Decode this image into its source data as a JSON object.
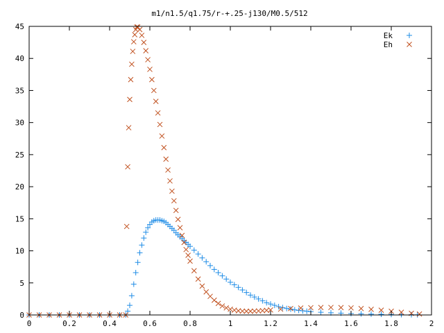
{
  "chart_data": {
    "type": "scatter",
    "title": "m1/n1.5/q1.75/r-+.25-j130/M0.5/512",
    "xlabel": "",
    "ylabel": "",
    "xlim": [
      0,
      2
    ],
    "ylim": [
      0,
      45
    ],
    "x_ticks": [
      0,
      0.2,
      0.4,
      0.6,
      0.8,
      1,
      1.2,
      1.4,
      1.6,
      1.8,
      2
    ],
    "x_tick_labels": [
      "0",
      "0.2",
      "0.4",
      "0.6",
      "0.8",
      "1",
      "1.2",
      "1.4",
      "1.6",
      "1.8",
      "2"
    ],
    "y_ticks": [
      0,
      5,
      10,
      15,
      20,
      25,
      30,
      35,
      40,
      45
    ],
    "y_tick_labels": [
      "0",
      "5",
      "10",
      "15",
      "20",
      "25",
      "30",
      "35",
      "40",
      "45"
    ],
    "grid": false,
    "legend_position": "top-right",
    "series": [
      {
        "name": "Ek",
        "marker": "plus",
        "color": "#1e8ce6",
        "x": [
          0.0,
          0.05,
          0.1,
          0.15,
          0.2,
          0.25,
          0.3,
          0.35,
          0.4,
          0.45,
          0.48,
          0.49,
          0.5,
          0.51,
          0.52,
          0.53,
          0.54,
          0.55,
          0.56,
          0.57,
          0.58,
          0.59,
          0.6,
          0.61,
          0.62,
          0.63,
          0.64,
          0.65,
          0.66,
          0.67,
          0.68,
          0.69,
          0.7,
          0.71,
          0.72,
          0.73,
          0.74,
          0.75,
          0.76,
          0.77,
          0.78,
          0.79,
          0.8,
          0.82,
          0.84,
          0.86,
          0.88,
          0.9,
          0.92,
          0.94,
          0.96,
          0.98,
          1.0,
          1.02,
          1.04,
          1.06,
          1.08,
          1.1,
          1.12,
          1.14,
          1.16,
          1.18,
          1.2,
          1.22,
          1.24,
          1.26,
          1.28,
          1.3,
          1.32,
          1.34,
          1.36,
          1.38,
          1.4,
          1.45,
          1.5,
          1.55,
          1.6,
          1.65,
          1.7,
          1.75,
          1.8,
          1.85,
          1.9,
          1.93
        ],
        "y": [
          0,
          0,
          0,
          0,
          0,
          0,
          0,
          0,
          0,
          0,
          0,
          0.6,
          1.5,
          3.0,
          4.8,
          6.6,
          8.2,
          9.7,
          10.9,
          12.0,
          12.9,
          13.6,
          14.1,
          14.5,
          14.7,
          14.8,
          14.8,
          14.8,
          14.7,
          14.6,
          14.4,
          14.1,
          13.8,
          13.5,
          13.2,
          12.8,
          12.5,
          12.2,
          11.9,
          11.6,
          11.3,
          11.0,
          10.7,
          10.1,
          9.5,
          8.9,
          8.3,
          7.7,
          7.1,
          6.6,
          6.1,
          5.6,
          5.1,
          4.7,
          4.3,
          3.9,
          3.5,
          3.1,
          2.8,
          2.5,
          2.2,
          1.9,
          1.7,
          1.5,
          1.3,
          1.15,
          1.0,
          0.9,
          0.8,
          0.72,
          0.65,
          0.58,
          0.52,
          0.42,
          0.34,
          0.28,
          0.22,
          0.18,
          0.14,
          0.11,
          0.08,
          0.06,
          0.04,
          0.03
        ]
      },
      {
        "name": "Eh",
        "marker": "cross",
        "color": "#c0501e",
        "x": [
          0.0,
          0.05,
          0.1,
          0.15,
          0.2,
          0.25,
          0.3,
          0.35,
          0.4,
          0.45,
          0.48,
          0.485,
          0.49,
          0.495,
          0.5,
          0.505,
          0.51,
          0.515,
          0.52,
          0.525,
          0.53,
          0.535,
          0.54,
          0.55,
          0.56,
          0.57,
          0.58,
          0.59,
          0.6,
          0.61,
          0.62,
          0.63,
          0.64,
          0.65,
          0.66,
          0.67,
          0.68,
          0.69,
          0.7,
          0.71,
          0.72,
          0.73,
          0.74,
          0.75,
          0.76,
          0.77,
          0.78,
          0.79,
          0.8,
          0.82,
          0.84,
          0.86,
          0.88,
          0.9,
          0.92,
          0.94,
          0.96,
          0.98,
          1.0,
          1.02,
          1.04,
          1.06,
          1.08,
          1.1,
          1.12,
          1.14,
          1.16,
          1.18,
          1.2,
          1.25,
          1.3,
          1.35,
          1.4,
          1.45,
          1.5,
          1.55,
          1.6,
          1.65,
          1.7,
          1.75,
          1.8,
          1.85,
          1.9,
          1.94
        ],
        "y": [
          0,
          0,
          0,
          0,
          0,
          0,
          0,
          0,
          0,
          0,
          0,
          13.8,
          23.1,
          29.2,
          33.6,
          36.7,
          39.1,
          41.1,
          42.6,
          43.7,
          44.5,
          44.9,
          44.9,
          44.5,
          43.6,
          42.5,
          41.2,
          39.8,
          38.3,
          36.7,
          35.0,
          33.3,
          31.5,
          29.7,
          27.9,
          26.1,
          24.3,
          22.6,
          20.9,
          19.3,
          17.8,
          16.3,
          14.9,
          13.6,
          12.4,
          11.3,
          10.2,
          9.3,
          8.4,
          6.9,
          5.6,
          4.5,
          3.6,
          2.9,
          2.3,
          1.8,
          1.4,
          1.1,
          0.9,
          0.75,
          0.65,
          0.6,
          0.58,
          0.58,
          0.6,
          0.63,
          0.67,
          0.72,
          0.78,
          0.9,
          1.0,
          1.08,
          1.13,
          1.16,
          1.17,
          1.15,
          1.1,
          1.0,
          0.88,
          0.74,
          0.58,
          0.42,
          0.26,
          0.15
        ]
      }
    ]
  }
}
